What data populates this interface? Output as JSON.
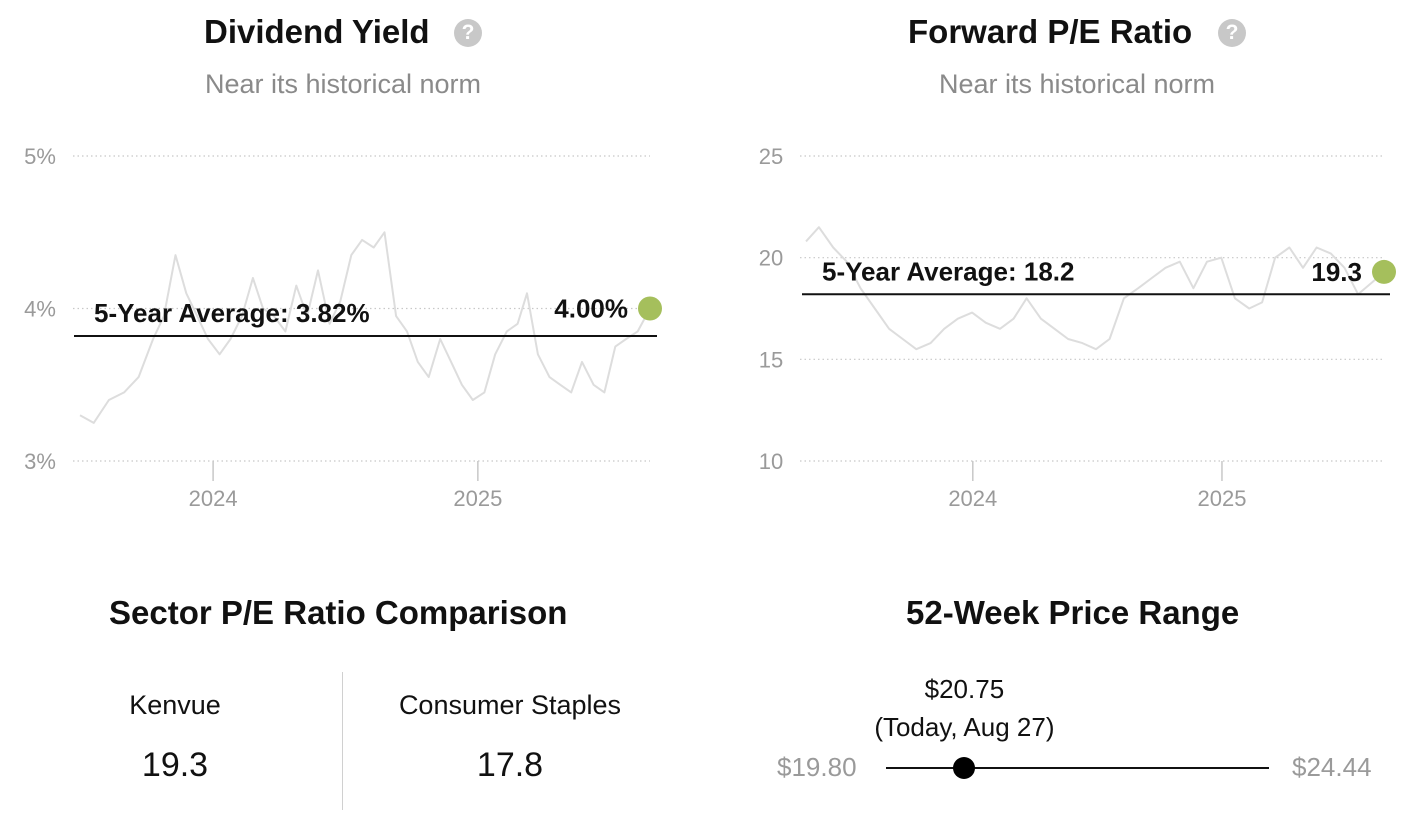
{
  "dividend_yield": {
    "title": "Dividend Yield",
    "subtitle": "Near its historical norm"
  },
  "forward_pe": {
    "title": "Forward P/E Ratio",
    "subtitle": "Near its historical norm"
  },
  "sector": {
    "title": "Sector P/E Ratio Comparison",
    "items": [
      {
        "name": "Kenvue",
        "value": "19.3"
      },
      {
        "name": "Consumer Staples",
        "value": "17.8"
      }
    ]
  },
  "price_range": {
    "title": "52-Week Price Range",
    "low_label": "$19.80",
    "high_label": "$24.44",
    "current_label": "$20.75",
    "current_note": "(Today, Aug 27)",
    "low": 19.8,
    "high": 24.44,
    "current": 20.75
  },
  "chart_data": [
    {
      "type": "line",
      "title": "Dividend Yield",
      "subtitle": "Near its historical norm",
      "ylim": [
        3,
        5
      ],
      "yticks": [
        3,
        4,
        5
      ],
      "ytick_labels": [
        "3%",
        "4%",
        "5%"
      ],
      "x_range": [
        "2023-07-01",
        "2025-08-27"
      ],
      "xticks": [
        "2024-01-01",
        "2025-01-01"
      ],
      "xtick_labels": [
        "2024",
        "2025"
      ],
      "average": 3.82,
      "average_label": "5-Year Average: 3.82%",
      "current": 4.0,
      "current_label": "4.00%",
      "current_color": "#a5bf5c",
      "series_color": "#dddddd",
      "grid": true,
      "series": [
        {
          "x": [
            "2023-07-01",
            "2023-07-20",
            "2023-08-10",
            "2023-08-31",
            "2023-09-20",
            "2023-10-10",
            "2023-10-25",
            "2023-11-10",
            "2023-11-25",
            "2023-12-10",
            "2023-12-25",
            "2024-01-10",
            "2024-01-25",
            "2024-02-10",
            "2024-02-25",
            "2024-03-10",
            "2024-03-25",
            "2024-04-10",
            "2024-04-25",
            "2024-05-10",
            "2024-05-25",
            "2024-06-10",
            "2024-06-25",
            "2024-07-10",
            "2024-07-25",
            "2024-08-10",
            "2024-08-25",
            "2024-09-10",
            "2024-09-25",
            "2024-10-10",
            "2024-10-25",
            "2024-11-10",
            "2024-11-25",
            "2024-12-10",
            "2024-12-25",
            "2025-01-10",
            "2025-01-25",
            "2025-02-10",
            "2025-02-25",
            "2025-03-10",
            "2025-03-25",
            "2025-04-10",
            "2025-04-25",
            "2025-05-10",
            "2025-05-25",
            "2025-06-10",
            "2025-06-25",
            "2025-07-10",
            "2025-07-25",
            "2025-08-10",
            "2025-08-27"
          ],
          "y": [
            3.3,
            3.25,
            3.4,
            3.45,
            3.55,
            3.8,
            3.95,
            4.35,
            4.1,
            3.95,
            3.8,
            3.7,
            3.8,
            3.95,
            4.2,
            4.0,
            3.95,
            3.85,
            4.15,
            3.95,
            4.25,
            3.9,
            4.05,
            4.35,
            4.45,
            4.4,
            4.5,
            3.95,
            3.85,
            3.65,
            3.55,
            3.8,
            3.65,
            3.5,
            3.4,
            3.45,
            3.7,
            3.85,
            3.9,
            4.1,
            3.7,
            3.55,
            3.5,
            3.45,
            3.65,
            3.5,
            3.45,
            3.75,
            3.8,
            3.85,
            4.0
          ]
        }
      ]
    },
    {
      "type": "line",
      "title": "Forward P/E Ratio",
      "subtitle": "Near its historical norm",
      "ylim": [
        10,
        25
      ],
      "yticks": [
        10,
        15,
        20,
        25
      ],
      "ytick_labels": [
        "10",
        "15",
        "20",
        "25"
      ],
      "x_range": [
        "2023-05-01",
        "2025-08-27"
      ],
      "xticks": [
        "2024-01-01",
        "2025-01-01"
      ],
      "xtick_labels": [
        "2024",
        "2025"
      ],
      "average": 18.2,
      "average_label": "5-Year Average: 18.2",
      "current": 19.3,
      "current_label": "19.3",
      "current_color": "#a5bf5c",
      "series_color": "#dddddd",
      "grid": true,
      "series": [
        {
          "x": [
            "2023-05-01",
            "2023-05-20",
            "2023-06-10",
            "2023-06-30",
            "2023-07-20",
            "2023-08-10",
            "2023-08-31",
            "2023-09-20",
            "2023-10-10",
            "2023-10-31",
            "2023-11-20",
            "2023-12-10",
            "2023-12-31",
            "2024-01-20",
            "2024-02-10",
            "2024-03-01",
            "2024-03-20",
            "2024-04-10",
            "2024-04-30",
            "2024-05-20",
            "2024-06-10",
            "2024-06-30",
            "2024-07-20",
            "2024-08-10",
            "2024-08-31",
            "2024-09-20",
            "2024-10-10",
            "2024-10-31",
            "2024-11-20",
            "2024-12-10",
            "2024-12-31",
            "2025-01-20",
            "2025-02-10",
            "2025-03-01",
            "2025-03-20",
            "2025-04-10",
            "2025-04-30",
            "2025-05-20",
            "2025-06-10",
            "2025-06-30",
            "2025-07-20",
            "2025-08-10",
            "2025-08-27"
          ],
          "y": [
            20.8,
            21.5,
            20.5,
            19.8,
            18.5,
            17.5,
            16.5,
            16.0,
            15.5,
            15.8,
            16.5,
            17.0,
            17.3,
            16.8,
            16.5,
            17.0,
            18.0,
            17.0,
            16.5,
            16.0,
            15.8,
            15.5,
            16.0,
            18.0,
            18.5,
            19.0,
            19.5,
            19.8,
            18.5,
            19.8,
            20.0,
            18.0,
            17.5,
            17.8,
            20.0,
            20.5,
            19.5,
            20.5,
            20.2,
            19.5,
            18.2,
            18.8,
            19.3
          ]
        }
      ]
    }
  ]
}
